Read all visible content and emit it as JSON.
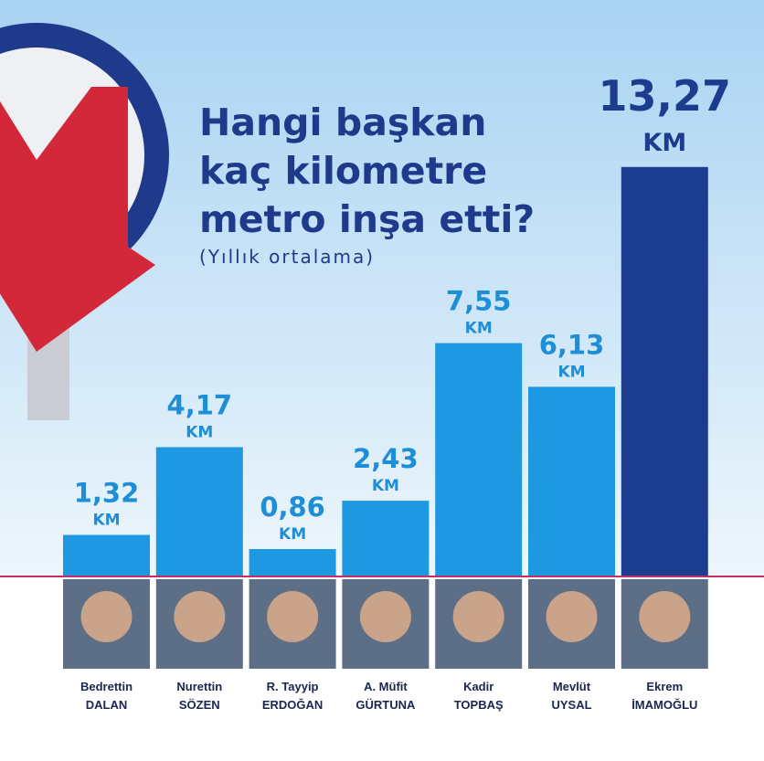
{
  "chart_data": {
    "type": "bar",
    "title_lines": [
      "Hangi başkan",
      "kaç kilometre",
      "metro inşa etti?"
    ],
    "subtitle": "(Yıllık ortalama)",
    "categories": [
      "Bedrettin\nDALAN",
      "Nurettin\nSÖZEN",
      "R. Tayyip\nERDOĞAN",
      "A. Müfit\nGÜRTUNA",
      "Kadir\nTOPBAŞ",
      "Mevlüt\nUYSAL",
      "Ekrem\nİMAMOĞLU"
    ],
    "values": [
      1.32,
      4.17,
      0.86,
      2.43,
      7.55,
      6.13,
      13.27
    ],
    "value_labels": [
      "1,32",
      "4,17",
      "0,86",
      "2,43",
      "7,55",
      "6,13",
      "13,27"
    ],
    "unit": "KM",
    "colors": [
      "#1e98e0",
      "#1e98e0",
      "#1e98e0",
      "#1e98e0",
      "#1e98e0",
      "#1e98e0",
      "#1c3d8f"
    ]
  }
}
